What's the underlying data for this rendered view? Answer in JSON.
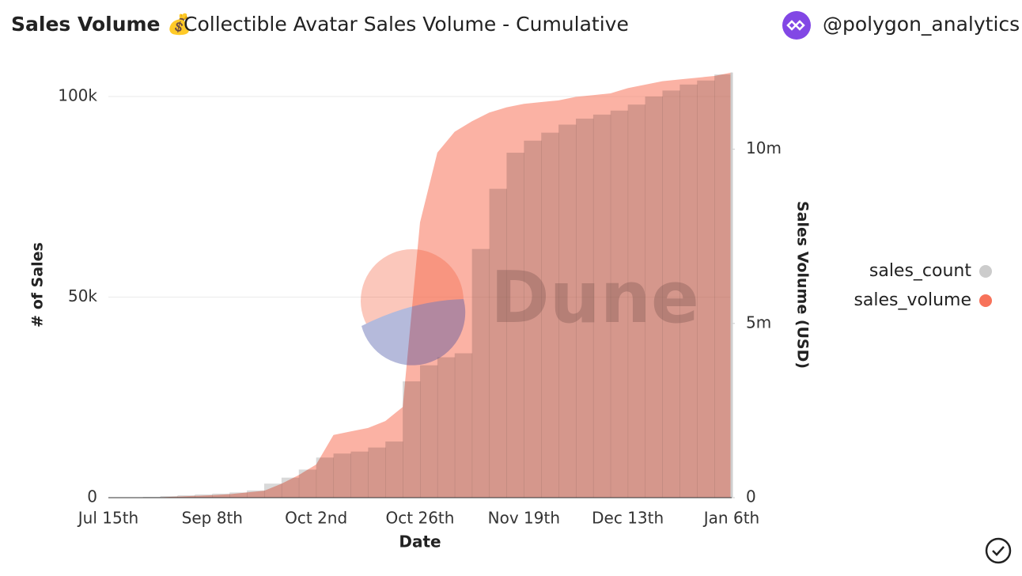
{
  "chart_data": {
    "type": "area",
    "title": "Sales Volume 💰",
    "subtitle": "Collectible Avatar Sales Volume - Cumulative",
    "author": "@polygon_analytics",
    "watermark": "Dune",
    "xlabel": "Date",
    "ylabel": "# of Sales",
    "y2label": "Sales Volume (USD)",
    "categories": [
      "Jul 15th",
      null,
      null,
      null,
      null,
      null,
      "Sep 8th",
      null,
      null,
      null,
      null,
      null,
      "Oct 2nd",
      null,
      null,
      null,
      null,
      null,
      "Oct 26th",
      null,
      null,
      null,
      null,
      null,
      "Nov 19th",
      null,
      null,
      null,
      null,
      null,
      "Dec 13th",
      null,
      null,
      null,
      null,
      null,
      "Jan 6th"
    ],
    "series": [
      {
        "name": "sales_count",
        "color": "#cccccc",
        "axis": "y",
        "values": [
          0,
          0,
          0,
          200,
          400,
          600,
          800,
          1000,
          1300,
          1800,
          3500,
          5000,
          7000,
          10000,
          11000,
          11500,
          12500,
          14000,
          29000,
          33000,
          35000,
          36000,
          62000,
          77000,
          86000,
          89000,
          91000,
          93000,
          94500,
          95500,
          96500,
          98000,
          100000,
          101500,
          103000,
          104000,
          105500
        ]
      },
      {
        "name": "sales_volume",
        "color": "#f7725a",
        "axis": "y2",
        "values": [
          0,
          0,
          0,
          10000,
          30000,
          50000,
          70000,
          100000,
          150000,
          200000,
          400000,
          650000,
          950000,
          1800000,
          1900000,
          2000000,
          2200000,
          2600000,
          7900000,
          9900000,
          10500000,
          10800000,
          11050000,
          11200000,
          11300000,
          11350000,
          11400000,
          11500000,
          11550000,
          11600000,
          11750000,
          11850000,
          11950000,
          12000000,
          12050000,
          12100000,
          12200000
        ]
      }
    ],
    "ylim": [
      0,
      106000
    ],
    "yticks": [
      0,
      {
        "value": 50000,
        "label": "50k"
      },
      {
        "value": 100000,
        "label": "100k"
      }
    ],
    "y2lim": [
      0,
      12200000
    ],
    "y2ticks": [
      0,
      {
        "value": 5000000,
        "label": "5m"
      },
      {
        "value": 10000000,
        "label": "10m"
      }
    ],
    "grid": true,
    "legend": "right"
  }
}
